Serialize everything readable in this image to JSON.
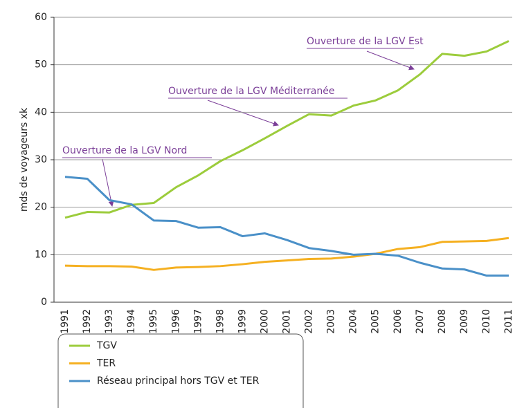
{
  "chart_data": {
    "type": "line",
    "y_label": "mds de voyageurs xk",
    "categories": [
      "1991",
      "1992",
      "1993",
      "1994",
      "1995",
      "1996",
      "1997",
      "1998",
      "1999",
      "2000",
      "2001",
      "2002",
      "2003",
      "2004",
      "2005",
      "2006",
      "2007",
      "2008",
      "2009",
      "2010",
      "2011"
    ],
    "series": [
      {
        "name": "TGV",
        "color": "#9ccc3c",
        "values": [
          17.8,
          19.0,
          18.9,
          20.5,
          20.9,
          24.2,
          26.7,
          29.7,
          32.0,
          34.5,
          37.1,
          39.6,
          39.3,
          41.4,
          42.5,
          44.6,
          48.0,
          52.3,
          51.9,
          52.8,
          55.0
        ]
      },
      {
        "name": "TER",
        "color": "#f5b021",
        "values": [
          7.7,
          7.6,
          7.6,
          7.5,
          6.8,
          7.3,
          7.4,
          7.6,
          8.0,
          8.5,
          8.8,
          9.1,
          9.2,
          9.6,
          10.2,
          11.2,
          11.6,
          12.7,
          12.8,
          12.9,
          13.5
        ]
      },
      {
        "name": "Réseau principal hors TGV et TER",
        "color": "#4a90c8",
        "values": [
          26.4,
          26.0,
          21.5,
          20.6,
          17.2,
          17.1,
          15.7,
          15.8,
          13.9,
          14.5,
          13.1,
          11.4,
          10.8,
          10.0,
          10.2,
          9.8,
          8.3,
          7.1,
          6.9,
          5.6,
          5.6
        ]
      }
    ],
    "annotations": [
      "Ouverture de la LGV Est",
      "Ouverture de la LGV Méditerranée",
      "Ouverture de la LGV Nord"
    ],
    "ylim": [
      0,
      60
    ],
    "yticks": [
      0,
      10,
      20,
      30,
      40,
      50,
      60
    ],
    "grid": true,
    "legend": "bottom-left"
  }
}
